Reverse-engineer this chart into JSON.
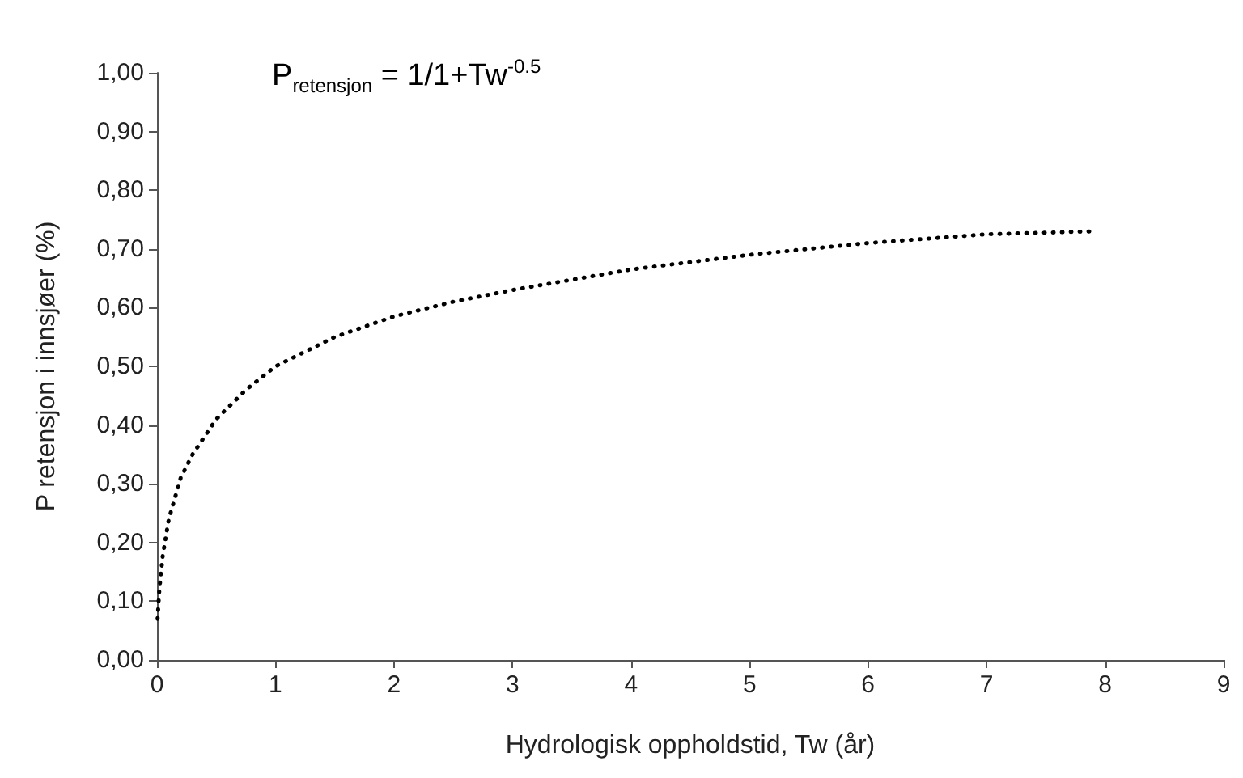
{
  "chart_data": {
    "type": "line",
    "xlabel": "Hydrologisk oppholdstid, Tw (år)",
    "ylabel": "P retensjon i innsjøer (%)",
    "annotations": [
      "P$_{retensjon}$ = 1/1+Tw$^{-0.5}$"
    ],
    "series": [
      {
        "color": "#000000",
        "x": [
          0.005,
          0.02,
          0.05,
          0.1,
          0.2,
          0.3,
          0.5,
          0.75,
          1,
          1.5,
          2,
          2.5,
          3,
          4,
          5,
          6,
          7,
          7.9
        ],
        "values": [
          0.07,
          0.12,
          0.18,
          0.24,
          0.31,
          0.35,
          0.41,
          0.46,
          0.5,
          0.55,
          0.585,
          0.61,
          0.63,
          0.665,
          0.69,
          0.71,
          0.725,
          0.73
        ]
      }
    ],
    "xlim": [
      0,
      9
    ],
    "xticks": [
      0,
      1,
      2,
      3,
      4,
      5,
      6,
      7,
      8,
      9
    ],
    "ylim": [
      0,
      1
    ],
    "yticks": [
      {
        "value": 0,
        "label": "0,00"
      },
      {
        "value": 0.1,
        "label": "0,10"
      },
      {
        "value": 0.2,
        "label": "0,20"
      },
      {
        "value": 0.3,
        "label": "0,30"
      },
      {
        "value": 0.4,
        "label": "0,40"
      },
      {
        "value": 0.5,
        "label": "0,50"
      },
      {
        "value": 0.6,
        "label": "0,60"
      },
      {
        "value": 0.7,
        "label": "0,70"
      },
      {
        "value": 0.8,
        "label": "0,80"
      },
      {
        "value": 0.9,
        "label": "0,90"
      },
      {
        "value": 1,
        "label": "1,00"
      }
    ],
    "marker": "none",
    "line_style": "dotted"
  }
}
